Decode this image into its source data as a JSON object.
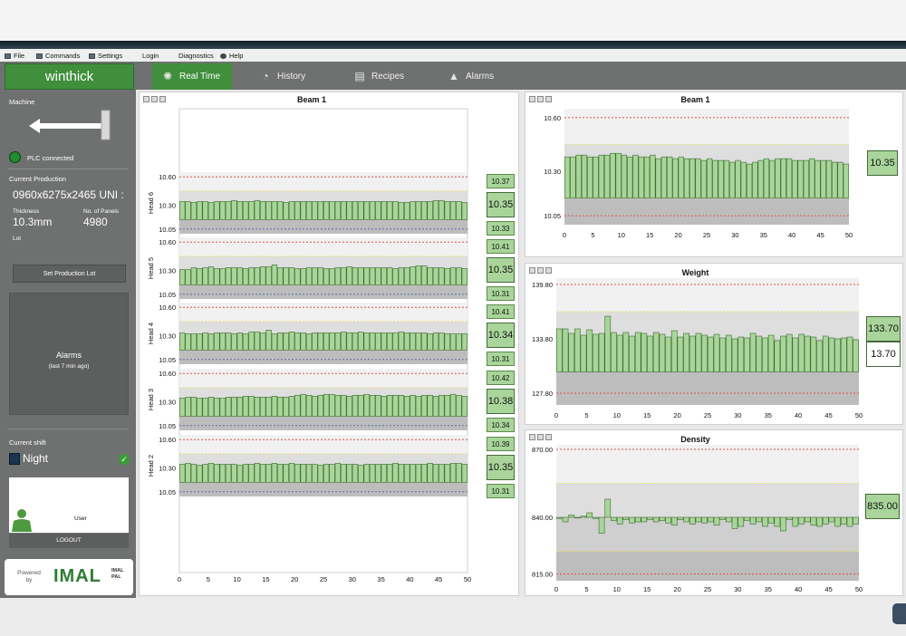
{
  "menu": [
    {
      "label": "File",
      "icon": "file-icon"
    },
    {
      "label": "Commands",
      "icon": "commands-icon"
    },
    {
      "label": "Settings",
      "icon": "settings-icon"
    },
    {
      "label": "Login",
      "icon": ""
    },
    {
      "label": "Diagnostics",
      "icon": ""
    },
    {
      "label": "Help",
      "icon": "help-icon"
    }
  ],
  "logo": "winthick",
  "tabs": [
    {
      "label": "Real Time",
      "icon": "realtime-icon",
      "active": true
    },
    {
      "label": "History",
      "icon": "history-icon",
      "active": false
    },
    {
      "label": "Recipes",
      "icon": "recipes-icon",
      "active": false
    },
    {
      "label": "Alarms",
      "icon": "alarms-icon",
      "active": false
    }
  ],
  "sidebar": {
    "machine_label": "Machine",
    "plc_status": "PLC connected",
    "current_production_label": "Current Production",
    "production_code": "0960x6275x2465 UNI :",
    "thickness_label": "Thickness",
    "thickness_value": "10.3mm",
    "panels_label": "No. of Panels",
    "panels_value": "4980",
    "lot_label": "Lot",
    "set_lot_button": "Set Production Lot",
    "alarms_title": "Alarms",
    "alarms_sub": "(last 7 min ago)",
    "shift_label": "Current shift",
    "shift_value": "Night",
    "user_label": "User",
    "logout_button": "LOGOUT",
    "powered_by": "Powered by",
    "powered_brand": "IMAL",
    "powered_brand2": "IMAL PAL"
  },
  "colors": {
    "accent": "#3f8f3c",
    "bar_fill": "#a9d59a",
    "bar_stroke": "#3a6b2e",
    "limit_red": "#e05050",
    "limit_yellow": "#e8e06a",
    "limit_blue": "#5f6fa8"
  },
  "chart_data": [
    {
      "type": "bar",
      "title": "Beam 1",
      "x_ticks": [
        0,
        5,
        10,
        15,
        20,
        25,
        30,
        35,
        40,
        45,
        50
      ],
      "xlim": [
        0,
        50
      ],
      "subplots": [
        {
          "name": "Head 6",
          "ylabel": "Head 6",
          "y_ticks": [
            "10.60",
            "10.30",
            "10.05"
          ],
          "ylim": [
            10.0,
            10.65
          ],
          "max": "10.37",
          "current": "10.35",
          "min": "10.33",
          "values": [
            10.34,
            10.34,
            10.33,
            10.34,
            10.34,
            10.33,
            10.34,
            10.34,
            10.34,
            10.35,
            10.34,
            10.34,
            10.34,
            10.35,
            10.34,
            10.34,
            10.34,
            10.34,
            10.33,
            10.34,
            10.34,
            10.34,
            10.34,
            10.34,
            10.34,
            10.34,
            10.34,
            10.34,
            10.34,
            10.34,
            10.34,
            10.34,
            10.34,
            10.34,
            10.34,
            10.34,
            10.34,
            10.34,
            10.33,
            10.33,
            10.34,
            10.34,
            10.34,
            10.34,
            10.35,
            10.35,
            10.34,
            10.34,
            10.34,
            10.33
          ]
        },
        {
          "name": "Head 5",
          "ylabel": "Head 5",
          "y_ticks": [
            "10.60",
            "10.30",
            "10.05"
          ],
          "ylim": [
            10.0,
            10.65
          ],
          "max": "10.41",
          "current": "10.35",
          "min": "10.31",
          "values": [
            10.31,
            10.31,
            10.33,
            10.32,
            10.33,
            10.34,
            10.32,
            10.32,
            10.33,
            10.33,
            10.33,
            10.32,
            10.33,
            10.33,
            10.34,
            10.34,
            10.36,
            10.33,
            10.33,
            10.33,
            10.32,
            10.32,
            10.33,
            10.33,
            10.33,
            10.32,
            10.32,
            10.33,
            10.33,
            10.34,
            10.33,
            10.33,
            10.33,
            10.33,
            10.33,
            10.33,
            10.33,
            10.32,
            10.33,
            10.33,
            10.34,
            10.35,
            10.35,
            10.33,
            10.33,
            10.33,
            10.32,
            10.33,
            10.33,
            10.32
          ]
        },
        {
          "name": "Head 4",
          "ylabel": "Head 4",
          "y_ticks": [
            "10.60",
            "10.30",
            "10.05"
          ],
          "ylim": [
            10.0,
            10.65
          ],
          "max": "10.41",
          "current": "10.34",
          "min": "10.31",
          "values": [
            10.33,
            10.32,
            10.32,
            10.32,
            10.33,
            10.32,
            10.33,
            10.33,
            10.33,
            10.32,
            10.33,
            10.32,
            10.34,
            10.34,
            10.33,
            10.36,
            10.32,
            10.33,
            10.33,
            10.34,
            10.33,
            10.33,
            10.32,
            10.33,
            10.33,
            10.33,
            10.33,
            10.33,
            10.34,
            10.33,
            10.33,
            10.34,
            10.33,
            10.33,
            10.33,
            10.33,
            10.33,
            10.33,
            10.34,
            10.33,
            10.33,
            10.33,
            10.33,
            10.32,
            10.33,
            10.33,
            10.32,
            10.32,
            10.32,
            10.32
          ]
        },
        {
          "name": "Head 3",
          "ylabel": "Head 3",
          "y_ticks": [
            "10.60",
            "10.30",
            "10.05"
          ],
          "ylim": [
            10.0,
            10.65
          ],
          "max": "10.42",
          "current": "10.38",
          "min": "10.34",
          "values": [
            10.34,
            10.35,
            10.35,
            10.34,
            10.34,
            10.35,
            10.34,
            10.34,
            10.35,
            10.35,
            10.35,
            10.36,
            10.36,
            10.35,
            10.35,
            10.35,
            10.36,
            10.35,
            10.35,
            10.36,
            10.37,
            10.38,
            10.37,
            10.36,
            10.37,
            10.38,
            10.38,
            10.37,
            10.37,
            10.36,
            10.37,
            10.37,
            10.38,
            10.37,
            10.37,
            10.36,
            10.37,
            10.37,
            10.37,
            10.36,
            10.37,
            10.36,
            10.37,
            10.37,
            10.36,
            10.37,
            10.37,
            10.38,
            10.37,
            10.36
          ]
        },
        {
          "name": "Head 2",
          "ylabel": "Head 2",
          "y_ticks": [
            "10.60",
            "10.30",
            "10.05"
          ],
          "ylim": [
            10.0,
            10.65
          ],
          "max": "10.39",
          "current": "10.35",
          "min": "10.31",
          "values": [
            10.34,
            10.35,
            10.34,
            10.33,
            10.34,
            10.35,
            10.34,
            10.34,
            10.34,
            10.34,
            10.33,
            10.34,
            10.34,
            10.35,
            10.34,
            10.34,
            10.35,
            10.34,
            10.34,
            10.35,
            10.34,
            10.34,
            10.34,
            10.34,
            10.33,
            10.34,
            10.34,
            10.35,
            10.34,
            10.34,
            10.34,
            10.33,
            10.34,
            10.34,
            10.34,
            10.34,
            10.34,
            10.35,
            10.34,
            10.34,
            10.34,
            10.34,
            10.34,
            10.35,
            10.34,
            10.34,
            10.34,
            10.35,
            10.35,
            10.34
          ]
        }
      ]
    },
    {
      "type": "bar",
      "title": "Beam 1",
      "y_ticks": [
        "10.60",
        "10.30",
        "10.05"
      ],
      "ylim": [
        10.0,
        10.65
      ],
      "x_ticks": [
        0,
        5,
        10,
        15,
        20,
        25,
        30,
        35,
        40,
        45,
        50
      ],
      "xlim": [
        0,
        50
      ],
      "current": "10.35",
      "values": [
        10.38,
        10.38,
        10.39,
        10.39,
        10.38,
        10.38,
        10.39,
        10.39,
        10.4,
        10.4,
        10.39,
        10.38,
        10.39,
        10.38,
        10.38,
        10.39,
        10.37,
        10.38,
        10.38,
        10.37,
        10.38,
        10.37,
        10.37,
        10.37,
        10.36,
        10.37,
        10.36,
        10.36,
        10.36,
        10.35,
        10.36,
        10.35,
        10.34,
        10.35,
        10.36,
        10.37,
        10.36,
        10.37,
        10.37,
        10.37,
        10.36,
        10.36,
        10.36,
        10.37,
        10.36,
        10.36,
        10.36,
        10.35,
        10.35,
        10.34
      ]
    },
    {
      "type": "bar",
      "title": "Weight",
      "y_ticks": [
        "139.80",
        "133.80",
        "127.80"
      ],
      "ylim": [
        126.5,
        140.5
      ],
      "x_ticks": [
        0,
        5,
        10,
        15,
        20,
        25,
        30,
        35,
        40,
        45,
        50
      ],
      "xlim": [
        0,
        50
      ],
      "current": "133.70",
      "secondary": "13.70",
      "values": [
        134.9,
        134.9,
        134.4,
        134.9,
        134.2,
        134.8,
        134.3,
        134.4,
        136.3,
        134.5,
        134.2,
        134.5,
        134.1,
        134.5,
        134.4,
        134.1,
        134.5,
        134.3,
        134.0,
        134.7,
        134.0,
        134.4,
        134.1,
        134.4,
        134.2,
        134.0,
        134.3,
        133.9,
        134.2,
        133.8,
        134.0,
        133.9,
        134.4,
        134.1,
        133.9,
        134.2,
        133.6,
        134.1,
        134.3,
        133.9,
        134.3,
        134.1,
        134.0,
        133.6,
        134.1,
        133.9,
        133.8,
        133.9,
        134.0,
        133.7
      ]
    },
    {
      "type": "bar",
      "title": "Density",
      "y_ticks": [
        "870.00",
        "840.00",
        "815.00"
      ],
      "ylim": [
        812,
        872
      ],
      "x_ticks": [
        0,
        5,
        10,
        15,
        20,
        25,
        30,
        35,
        40,
        45,
        50
      ],
      "xlim": [
        0,
        50
      ],
      "current": "835.00",
      "values": [
        839.5,
        838,
        841,
        840,
        840.5,
        842,
        839.5,
        833,
        848,
        838.5,
        837,
        839,
        837.5,
        838,
        838,
        839,
        838,
        838.5,
        837.5,
        836.5,
        839,
        838,
        837,
        838,
        837.5,
        838,
        836.5,
        839,
        838,
        835,
        836,
        838.5,
        837,
        838,
        836,
        837.5,
        836,
        834,
        839,
        836,
        837,
        838,
        836.5,
        836,
        837,
        838,
        836,
        837,
        836,
        837
      ]
    }
  ]
}
